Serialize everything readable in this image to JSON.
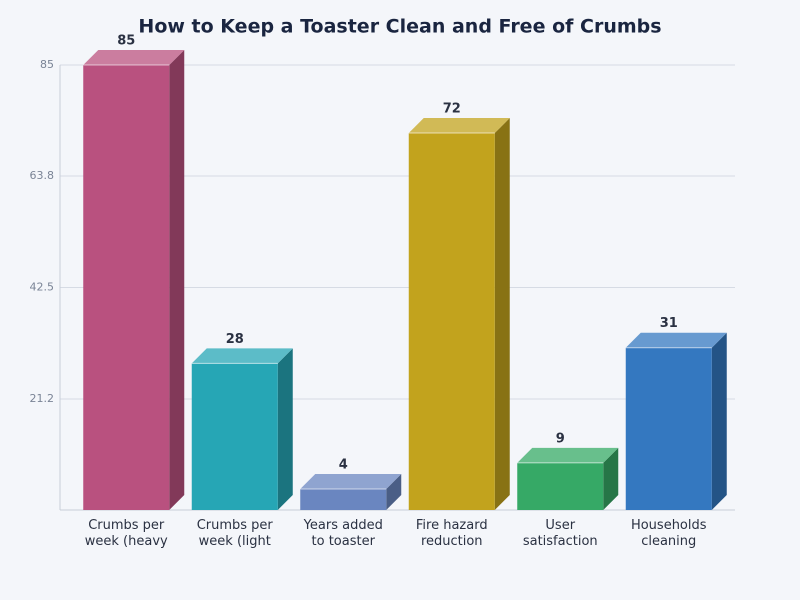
{
  "chart_data": {
    "type": "bar3d",
    "title": "How to Keep a Toaster Clean and Free of Crumbs",
    "categories": [
      "Crumbs per week (heavy",
      "Crumbs per week (light",
      "Years added to toaster",
      "Fire hazard reduction",
      "User satisfaction",
      "Households cleaning"
    ],
    "values": [
      85,
      28,
      4,
      72,
      9,
      31
    ],
    "colors": [
      "#b9517f",
      "#26a6b5",
      "#6a86c0",
      "#c2a31d",
      "#36a966",
      "#3478c0"
    ],
    "ylim": [
      0,
      85
    ],
    "yticks": [
      21.2,
      42.5,
      63.8,
      85
    ],
    "grid": true
  }
}
